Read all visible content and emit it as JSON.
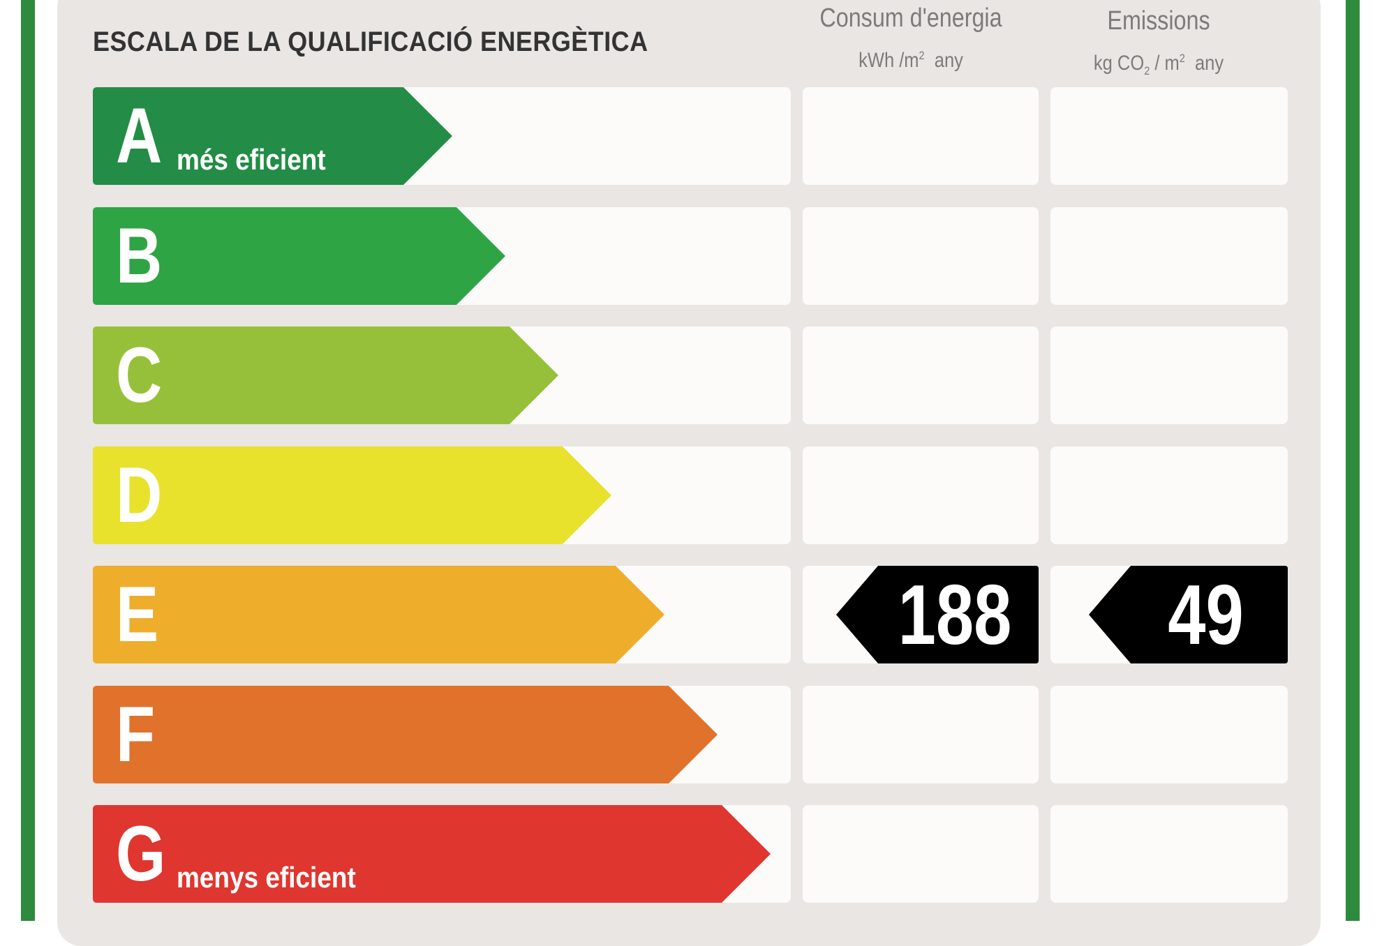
{
  "title": "ESCALA DE LA QUALIFICACIÓ ENERGÈTICA",
  "columns": {
    "energy": {
      "title": "Consum d'energia",
      "unit_prefix": "kWh /m",
      "unit_sup": "2",
      "unit_suffix": "any"
    },
    "emissions": {
      "title": "Emissions",
      "unit_prefix": "kg CO",
      "unit_sub": "2",
      "unit_mid": " / m",
      "unit_sup": "2",
      "unit_suffix": "any"
    }
  },
  "ratings": [
    {
      "letter": "A",
      "note": "més eficient",
      "color": "#238c46"
    },
    {
      "letter": "B",
      "note": "",
      "color": "#2fa444"
    },
    {
      "letter": "C",
      "note": "",
      "color": "#97c03a"
    },
    {
      "letter": "D",
      "note": "",
      "color": "#e8e22d"
    },
    {
      "letter": "E",
      "note": "",
      "color": "#efad2c"
    },
    {
      "letter": "F",
      "note": "",
      "color": "#e0722c"
    },
    {
      "letter": "G",
      "note": "menys eficient",
      "color": "#df362f"
    }
  ],
  "result": {
    "rating": "E",
    "energy_value": "188",
    "emissions_value": "49",
    "badge_color": "#000000"
  },
  "colors": {
    "frame": "#2e8b3d",
    "panel": "#e9e6e4",
    "cell": "#fcfbfa"
  }
}
